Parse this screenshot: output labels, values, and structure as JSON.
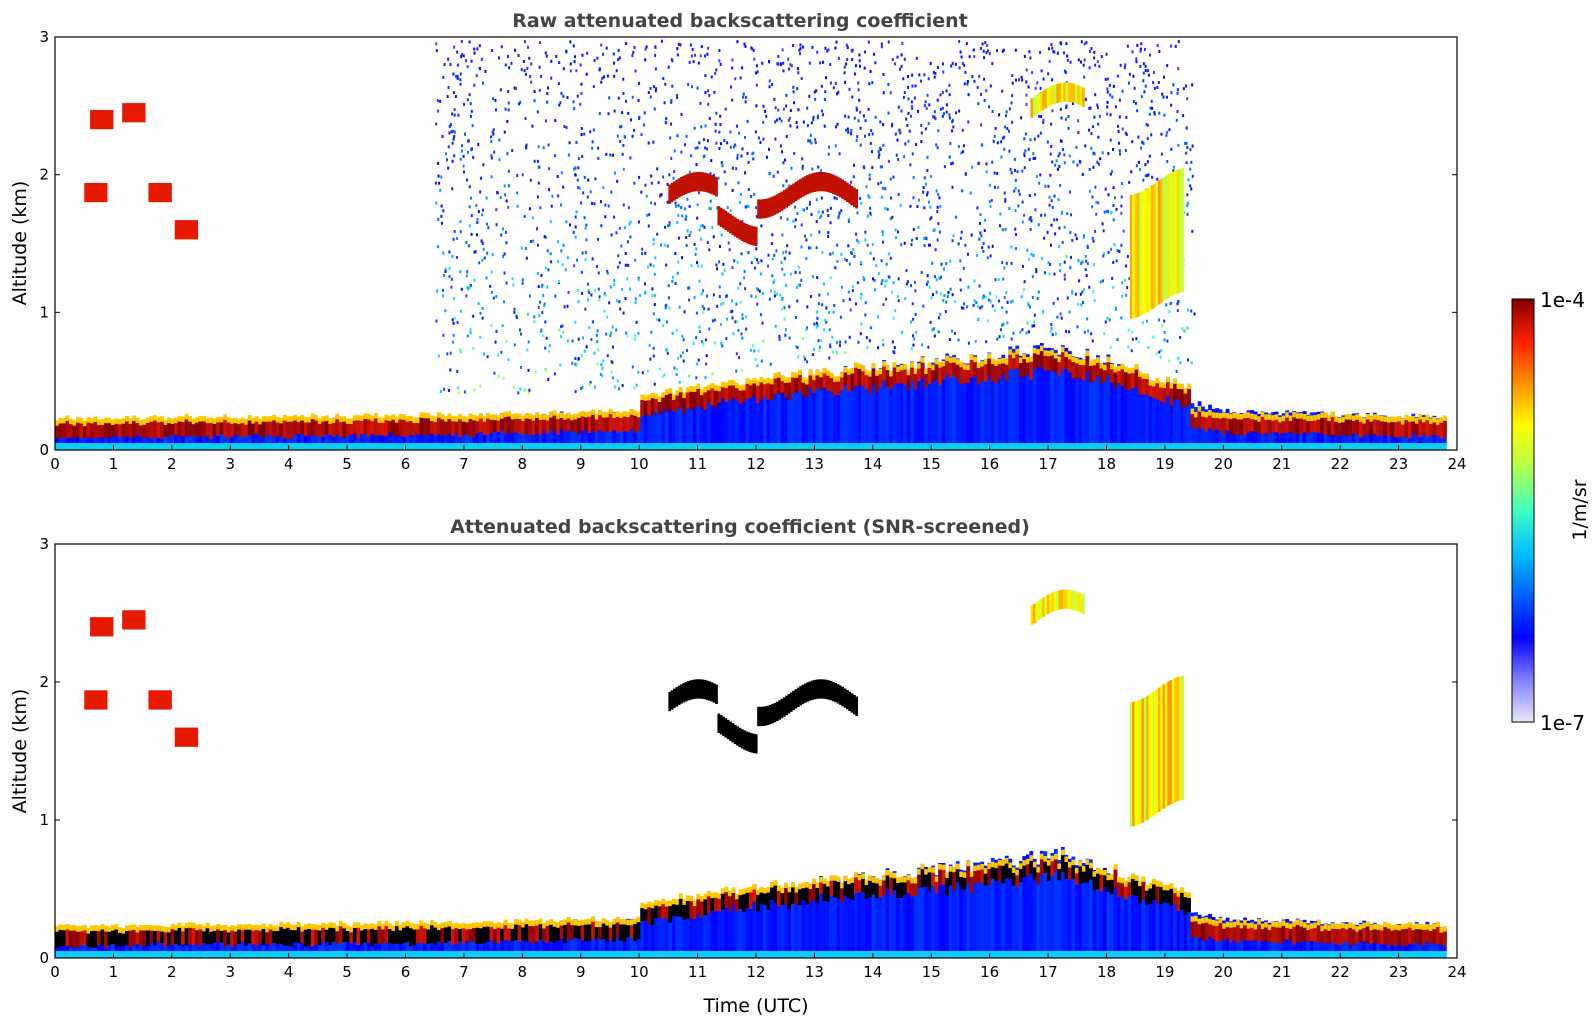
{
  "chart_data": [
    {
      "type": "heatmap",
      "title": "Raw attenuated backscattering coefficient",
      "xlabel": "",
      "ylabel": "Altitude (km)",
      "xlim": [
        0,
        24
      ],
      "ylim": [
        0,
        3
      ],
      "xticks": [
        0,
        1,
        2,
        3,
        4,
        5,
        6,
        7,
        8,
        9,
        10,
        11,
        12,
        13,
        14,
        15,
        16,
        17,
        18,
        19,
        20,
        21,
        22,
        23,
        24
      ],
      "yticks": [
        0,
        1,
        2,
        3
      ],
      "description_data": {
        "boundary_layer_top_km": [
          [
            0,
            0.25
          ],
          [
            4,
            0.28
          ],
          [
            7,
            0.3
          ],
          [
            10,
            0.35
          ],
          [
            12,
            0.5
          ],
          [
            14,
            0.6
          ],
          [
            17.3,
            0.75
          ],
          [
            19.3,
            0.45
          ],
          [
            20,
            0.35
          ],
          [
            23.8,
            0.3
          ]
        ],
        "cloud_layers": [
          {
            "t_start": 10.5,
            "t_end": 13.7,
            "altitude_km": 1.85
          },
          {
            "t_start": 16.7,
            "t_end": 17.6,
            "altitude_km": 2.5
          },
          {
            "t_start": 18.4,
            "t_end": 19.3,
            "altitude_km": 1.5
          }
        ]
      }
    },
    {
      "type": "heatmap",
      "title": "Attenuated backscattering coefficient (SNR-screened)",
      "xlabel": "Time (UTC)",
      "ylabel": "Altitude (km)",
      "xlim": [
        0,
        24
      ],
      "ylim": [
        0,
        3
      ],
      "xticks": [
        0,
        1,
        2,
        3,
        4,
        5,
        6,
        7,
        8,
        9,
        10,
        11,
        12,
        13,
        14,
        15,
        16,
        17,
        18,
        19,
        20,
        21,
        22,
        23,
        24
      ],
      "yticks": [
        0,
        1,
        2,
        3
      ]
    }
  ],
  "colorbar": {
    "label": "1/m/sr",
    "max_label": "1e-4",
    "min_label": "1e-7",
    "colors": [
      "#e8e8f8",
      "#8080ff",
      "#0000ff",
      "#0060ff",
      "#00c0ff",
      "#40ffc0",
      "#b0ff50",
      "#ffff00",
      "#ff9000",
      "#ff2000",
      "#800000"
    ]
  }
}
